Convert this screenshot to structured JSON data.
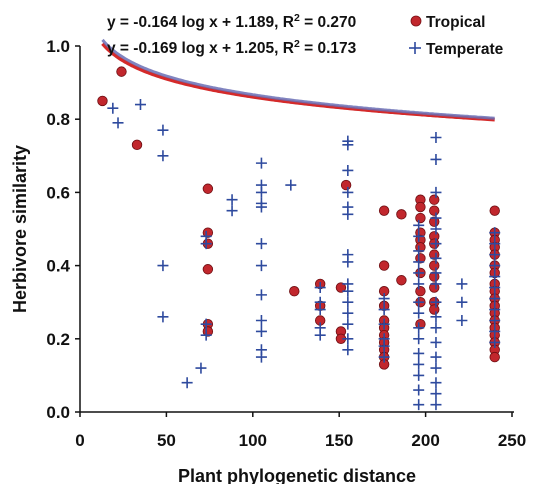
{
  "chart_data": {
    "type": "scatter",
    "title": "",
    "xlabel": "Plant phylogenetic distance",
    "ylabel": "Herbivore similarity",
    "xlim": [
      0,
      250
    ],
    "ylim": [
      0.0,
      1.0
    ],
    "x_ticks": [
      "0",
      "50",
      "100",
      "150",
      "200",
      "250"
    ],
    "y_ticks": [
      "0.0",
      "0.2",
      "0.4",
      "0.6",
      "0.8",
      "1.0"
    ],
    "grid": false,
    "legend_position": "top-right",
    "series": [
      {
        "name": "Tropical",
        "marker": "circle",
        "color": "#c1272d",
        "equation": "y = -0.164 log x + 1.189, R",
        "equation_sup": "2",
        "equation_tail": " = 0.270",
        "fit": {
          "slope": -0.164,
          "intercept": 1.189,
          "x_range": [
            13,
            240
          ],
          "color": "#d42a2a"
        },
        "points": [
          [
            13,
            0.85
          ],
          [
            24,
            0.93
          ],
          [
            33,
            0.73
          ],
          [
            74,
            0.61
          ],
          [
            74,
            0.49
          ],
          [
            74,
            0.46
          ],
          [
            74,
            0.39
          ],
          [
            74,
            0.24
          ],
          [
            74,
            0.22
          ],
          [
            124,
            0.33
          ],
          [
            139,
            0.35
          ],
          [
            139,
            0.29
          ],
          [
            139,
            0.25
          ],
          [
            151,
            0.34
          ],
          [
            151,
            0.22
          ],
          [
            151,
            0.2
          ],
          [
            154,
            0.62
          ],
          [
            176,
            0.55
          ],
          [
            176,
            0.4
          ],
          [
            176,
            0.33
          ],
          [
            176,
            0.29
          ],
          [
            176,
            0.25
          ],
          [
            176,
            0.23
          ],
          [
            176,
            0.21
          ],
          [
            176,
            0.19
          ],
          [
            176,
            0.17
          ],
          [
            176,
            0.15
          ],
          [
            176,
            0.13
          ],
          [
            186,
            0.54
          ],
          [
            186,
            0.36
          ],
          [
            197,
            0.58
          ],
          [
            197,
            0.56
          ],
          [
            197,
            0.53
          ],
          [
            197,
            0.49
          ],
          [
            197,
            0.47
          ],
          [
            197,
            0.45
          ],
          [
            197,
            0.42
          ],
          [
            197,
            0.38
          ],
          [
            197,
            0.33
          ],
          [
            197,
            0.3
          ],
          [
            197,
            0.24
          ],
          [
            205,
            0.58
          ],
          [
            205,
            0.55
          ],
          [
            205,
            0.52
          ],
          [
            205,
            0.48
          ],
          [
            205,
            0.46
          ],
          [
            205,
            0.43
          ],
          [
            205,
            0.4
          ],
          [
            205,
            0.37
          ],
          [
            205,
            0.34
          ],
          [
            205,
            0.3
          ],
          [
            205,
            0.28
          ],
          [
            240,
            0.55
          ],
          [
            240,
            0.49
          ],
          [
            240,
            0.47
          ],
          [
            240,
            0.45
          ],
          [
            240,
            0.43
          ],
          [
            240,
            0.4
          ],
          [
            240,
            0.38
          ],
          [
            240,
            0.35
          ],
          [
            240,
            0.33
          ],
          [
            240,
            0.31
          ],
          [
            240,
            0.29
          ],
          [
            240,
            0.27
          ],
          [
            240,
            0.25
          ],
          [
            240,
            0.23
          ],
          [
            240,
            0.21
          ],
          [
            240,
            0.19
          ],
          [
            240,
            0.17
          ],
          [
            240,
            0.15
          ]
        ]
      },
      {
        "name": "Temperate",
        "marker": "plus",
        "color": "#2e4a9e",
        "equation": "y = -0.169 log x + 1.205, R",
        "equation_sup": "2",
        "equation_tail": " = 0.173",
        "fit": {
          "slope": -0.169,
          "intercept": 1.205,
          "x_range": [
            13,
            240
          ],
          "color": "#6a6fb5"
        },
        "points": [
          [
            19,
            0.83
          ],
          [
            22,
            0.79
          ],
          [
            35,
            0.84
          ],
          [
            48,
            0.77
          ],
          [
            48,
            0.7
          ],
          [
            48,
            0.4
          ],
          [
            48,
            0.26
          ],
          [
            62,
            0.08
          ],
          [
            70,
            0.12
          ],
          [
            73,
            0.48
          ],
          [
            73,
            0.46
          ],
          [
            73,
            0.24
          ],
          [
            73,
            0.21
          ],
          [
            88,
            0.58
          ],
          [
            88,
            0.55
          ],
          [
            105,
            0.68
          ],
          [
            105,
            0.62
          ],
          [
            105,
            0.6
          ],
          [
            105,
            0.57
          ],
          [
            105,
            0.56
          ],
          [
            105,
            0.46
          ],
          [
            105,
            0.4
          ],
          [
            105,
            0.32
          ],
          [
            105,
            0.25
          ],
          [
            105,
            0.22
          ],
          [
            105,
            0.17
          ],
          [
            105,
            0.15
          ],
          [
            122,
            0.62
          ],
          [
            139,
            0.34
          ],
          [
            139,
            0.3
          ],
          [
            139,
            0.28
          ],
          [
            139,
            0.23
          ],
          [
            139,
            0.21
          ],
          [
            155,
            0.74
          ],
          [
            155,
            0.73
          ],
          [
            155,
            0.66
          ],
          [
            155,
            0.6
          ],
          [
            155,
            0.56
          ],
          [
            155,
            0.54
          ],
          [
            155,
            0.43
          ],
          [
            155,
            0.41
          ],
          [
            155,
            0.35
          ],
          [
            155,
            0.33
          ],
          [
            155,
            0.3
          ],
          [
            155,
            0.27
          ],
          [
            155,
            0.24
          ],
          [
            155,
            0.2
          ],
          [
            155,
            0.17
          ],
          [
            176,
            0.31
          ],
          [
            176,
            0.28
          ],
          [
            176,
            0.24
          ],
          [
            176,
            0.2
          ],
          [
            176,
            0.18
          ],
          [
            176,
            0.15
          ],
          [
            196,
            0.51
          ],
          [
            196,
            0.48
          ],
          [
            196,
            0.44
          ],
          [
            196,
            0.41
          ],
          [
            196,
            0.38
          ],
          [
            196,
            0.35
          ],
          [
            196,
            0.3
          ],
          [
            196,
            0.27
          ],
          [
            196,
            0.23
          ],
          [
            196,
            0.2
          ],
          [
            196,
            0.16
          ],
          [
            196,
            0.13
          ],
          [
            196,
            0.1
          ],
          [
            196,
            0.06
          ],
          [
            196,
            0.02
          ],
          [
            206,
            0.75
          ],
          [
            206,
            0.69
          ],
          [
            206,
            0.6
          ],
          [
            206,
            0.53
          ],
          [
            206,
            0.5
          ],
          [
            206,
            0.46
          ],
          [
            206,
            0.42
          ],
          [
            206,
            0.38
          ],
          [
            206,
            0.35
          ],
          [
            206,
            0.3
          ],
          [
            206,
            0.26
          ],
          [
            206,
            0.23
          ],
          [
            206,
            0.19
          ],
          [
            206,
            0.15
          ],
          [
            206,
            0.12
          ],
          [
            206,
            0.08
          ],
          [
            206,
            0.05
          ],
          [
            206,
            0.02
          ],
          [
            221,
            0.35
          ],
          [
            221,
            0.3
          ],
          [
            221,
            0.25
          ],
          [
            240,
            0.49
          ],
          [
            240,
            0.46
          ],
          [
            240,
            0.43
          ],
          [
            240,
            0.4
          ],
          [
            240,
            0.37
          ],
          [
            240,
            0.34
          ],
          [
            240,
            0.31
          ],
          [
            240,
            0.28
          ],
          [
            240,
            0.25
          ],
          [
            240,
            0.22
          ],
          [
            240,
            0.19
          ]
        ]
      }
    ]
  }
}
